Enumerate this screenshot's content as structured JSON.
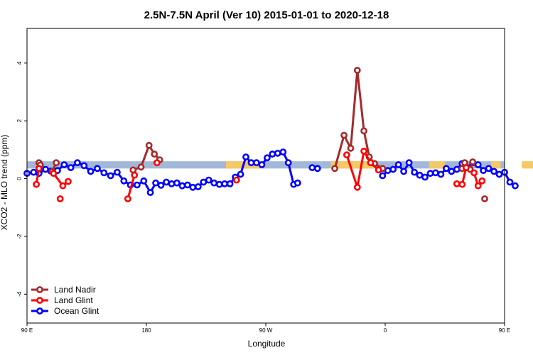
{
  "chart_data": {
    "type": "line",
    "title": "2.5N-7.5N April (Ver 10)   2015-01-01 to 2020-12-18",
    "xlabel": "Longitude",
    "ylabel": "XCO2 - MLO trend (ppm)",
    "xlim": [
      90,
      450
    ],
    "ylim": [
      -5,
      5.2
    ],
    "x_ticks": [
      {
        "value": 90,
        "label": "90 E"
      },
      {
        "value": 180,
        "label": "180"
      },
      {
        "value": 270,
        "label": "90 W"
      },
      {
        "value": 360,
        "label": "0"
      },
      {
        "value": 450,
        "label": "90 E"
      },
      {
        "value": 540,
        "label": "180"
      }
    ],
    "y_ticks": [
      {
        "value": -4,
        "label": "-4"
      },
      {
        "value": -2,
        "label": "-2"
      },
      {
        "value": 0,
        "label": "0"
      },
      {
        "value": 2,
        "label": "2"
      },
      {
        "value": 4,
        "label": "4"
      }
    ],
    "band": {
      "y0": 0.35,
      "y1": 0.6,
      "color": "#a3b8d8"
    },
    "band_highlights": {
      "color": "#f5c868",
      "spans": [
        [
          240,
          266
        ],
        [
          319,
          352
        ],
        [
          393,
          405
        ],
        [
          440,
          447
        ],
        [
          463,
          472
        ],
        [
          494,
          500
        ]
      ]
    },
    "legend_position": "bottom-left",
    "series": [
      {
        "name": "Land Nadir",
        "color": "#a52a2a",
        "segments": [
          [
            [
              99,
              0.55
            ],
            [
              100,
              0.47
            ]
          ],
          [
            [
              112,
              0.55
            ],
            [
              109,
              0.25
            ]
          ],
          [
            [
              170,
              0.3
            ],
            [
              176,
              0.4
            ],
            [
              182,
              1.15
            ],
            [
              186,
              0.85
            ],
            [
              190,
              0.65
            ]
          ],
          [
            [
              322,
              0.35
            ],
            [
              329,
              1.5
            ],
            [
              334,
              1.05
            ],
            [
              339,
              3.75
            ],
            [
              344,
              1.65
            ],
            [
              348,
              0.75
            ],
            [
              352,
              0.52
            ],
            [
              358,
              0.35
            ]
          ],
          [
            [
              420,
              0.55
            ],
            [
              418,
              0.35
            ]
          ],
          [
            [
              426,
              0.58
            ],
            [
              424,
              0.32
            ]
          ],
          [
            [
              435,
              -0.7
            ]
          ]
        ]
      },
      {
        "name": "Land Glint",
        "color": "#ff0000",
        "segments": [
          [
            [
              97,
              -0.2
            ],
            [
              99,
              0.35
            ]
          ],
          [
            [
              110,
              0.18
            ],
            [
              117,
              -0.25
            ],
            [
              121,
              -0.1
            ]
          ],
          [
            [
              166,
              -0.7
            ],
            [
              171,
              0.12
            ]
          ],
          [
            [
              188,
              0.55
            ]
          ],
          [
            [
              248,
              -0.05
            ]
          ],
          [
            [
              331,
              0.82
            ],
            [
              339,
              -0.3
            ],
            [
              344,
              0.95
            ],
            [
              349,
              0.55
            ],
            [
              355,
              0.3
            ]
          ],
          [
            [
              414,
              -0.18
            ]
          ],
          [
            [
              418,
              -0.2
            ],
            [
              421,
              0.38
            ]
          ],
          [
            [
              427,
              0.2
            ],
            [
              430,
              -0.25
            ],
            [
              433,
              -0.08
            ]
          ],
          [
            [
              115,
              -0.7
            ]
          ]
        ]
      },
      {
        "name": "Ocean Glint",
        "color": "#0000ff",
        "segments": [
          [
            [
              90,
              0.18
            ],
            [
              95,
              0.22
            ],
            [
              99,
              0.18
            ],
            [
              104,
              0.32
            ],
            [
              108,
              0.26
            ],
            [
              113,
              0.28
            ],
            [
              118,
              0.48
            ],
            [
              123,
              0.38
            ],
            [
              128,
              0.55
            ],
            [
              133,
              0.45
            ],
            [
              138,
              0.25
            ],
            [
              143,
              0.35
            ],
            [
              148,
              0.2
            ],
            [
              153,
              0.1
            ],
            [
              158,
              0.22
            ],
            [
              163,
              -0.08
            ],
            [
              168,
              -0.22
            ],
            [
              173,
              -0.22
            ],
            [
              178,
              -0.08
            ],
            [
              183,
              -0.48
            ],
            [
              187,
              -0.15
            ],
            [
              191,
              -0.23
            ],
            [
              195,
              -0.12
            ],
            [
              199,
              -0.18
            ],
            [
              203,
              -0.15
            ],
            [
              207,
              -0.25
            ],
            [
              211,
              -0.22
            ],
            [
              215,
              -0.3
            ],
            [
              219,
              -0.28
            ],
            [
              223,
              -0.12
            ],
            [
              227,
              -0.05
            ],
            [
              231,
              -0.15
            ],
            [
              235,
              -0.2
            ],
            [
              239,
              -0.18
            ],
            [
              243,
              -0.18
            ],
            [
              247,
              0.05
            ],
            [
              251,
              0.15
            ],
            [
              255,
              0.75
            ],
            [
              259,
              0.55
            ],
            [
              263,
              0.55
            ],
            [
              267,
              0.48
            ],
            [
              271,
              0.72
            ],
            [
              275,
              0.85
            ],
            [
              279,
              0.88
            ],
            [
              283,
              0.92
            ],
            [
              287,
              0.55
            ],
            [
              291,
              -0.2
            ],
            [
              294,
              -0.15
            ]
          ],
          [
            [
              305,
              0.38
            ],
            [
              309,
              0.35
            ]
          ],
          [
            [
              358,
              0.1
            ],
            [
              362,
              0.28
            ],
            [
              366,
              0.32
            ],
            [
              370,
              0.48
            ],
            [
              374,
              0.25
            ],
            [
              378,
              0.55
            ],
            [
              382,
              0.22
            ],
            [
              386,
              0.12
            ],
            [
              390,
              0.05
            ],
            [
              394,
              0.18
            ],
            [
              398,
              0.2
            ],
            [
              402,
              0.15
            ],
            [
              406,
              0.35
            ],
            [
              410,
              0.25
            ],
            [
              414,
              0.32
            ],
            [
              418,
              0.52
            ],
            [
              422,
              0.38
            ],
            [
              426,
              0.55
            ],
            [
              430,
              0.48
            ],
            [
              434,
              0.28
            ],
            [
              438,
              0.35
            ],
            [
              442,
              0.25
            ],
            [
              446,
              0.15
            ],
            [
              450,
              0.22
            ],
            [
              454,
              -0.12
            ],
            [
              458,
              -0.25
            ]
          ]
        ]
      }
    ]
  }
}
